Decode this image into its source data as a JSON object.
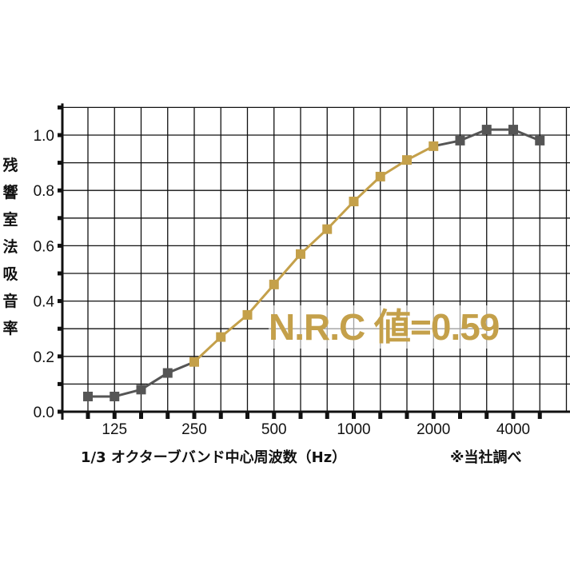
{
  "chart_data": {
    "type": "line",
    "title": "",
    "ylabel": "残響室法吸音率",
    "xlabel": "1/3 オクターブバンド中心周波数（Hz）",
    "note": "※当社調べ",
    "annotation": "N.R.C 値=0.59",
    "ylim": [
      0,
      1.1
    ],
    "yticks": [
      "0.0",
      "0.2",
      "0.4",
      "0.6",
      "0.8",
      "1.0"
    ],
    "x": [
      100,
      125,
      160,
      200,
      250,
      315,
      400,
      500,
      630,
      800,
      1000,
      1250,
      1600,
      2000,
      2500,
      3150,
      4000,
      5000
    ],
    "xtick_labels": [
      "125",
      "250",
      "500",
      "1000",
      "2000",
      "4000"
    ],
    "xtick_values": [
      125,
      250,
      500,
      1000,
      2000,
      4000
    ],
    "values": [
      0.055,
      0.055,
      0.08,
      0.14,
      0.18,
      0.27,
      0.35,
      0.46,
      0.57,
      0.66,
      0.76,
      0.85,
      0.91,
      0.96,
      0.98,
      1.02,
      1.02,
      0.98
    ],
    "highlight_range_hz": [
      250,
      2000
    ],
    "grid": true,
    "colors": {
      "base": "#555555",
      "highlight": "#c4a04a",
      "grid": "#111111"
    }
  }
}
